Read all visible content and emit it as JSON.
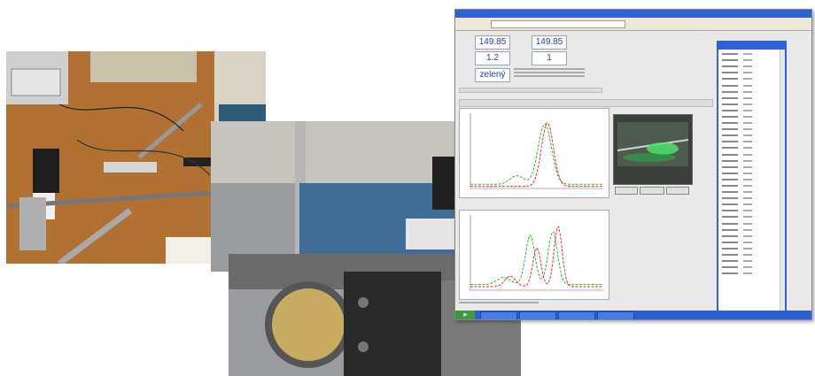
{
  "app": {
    "window_title": "",
    "address": ""
  },
  "fields": {
    "value1_label": "",
    "value1": "149.85",
    "value2_label": "",
    "value2": "149.85",
    "value3_label": "",
    "value3": "1.2",
    "value4_label": "",
    "value4": "1",
    "color_label": "",
    "color_value": "zelený"
  },
  "side_panel": {
    "title": "",
    "row_count": 36
  },
  "colors": {
    "green_trace": "#2db82d",
    "red_trace": "#e03030",
    "value_text": "#1f43b8",
    "window_blue": "#2f62d8"
  },
  "chart_data": [
    {
      "type": "line",
      "series_colors": [
        "#e03030",
        "#2db82d"
      ],
      "note_shape": "single peak"
    },
    {
      "type": "line",
      "series_colors": [
        "#e03030",
        "#2db82d"
      ],
      "note_shape": "double peak"
    }
  ]
}
